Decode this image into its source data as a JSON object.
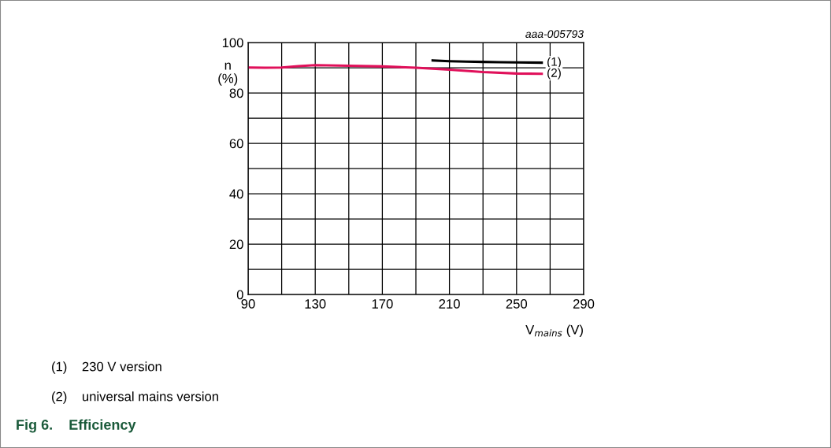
{
  "chart_data": {
    "type": "line",
    "title": "Fig 6.    Efficiency",
    "xlabel": "V$_{mains}$ (V)",
    "ylabel": "n\n(%)",
    "xlim": [
      90,
      290
    ],
    "ylim": [
      0,
      100
    ],
    "xticks": [
      90,
      {
        "value": 110,
        "label": null
      },
      130,
      {
        "value": 150,
        "label": null
      },
      170,
      {
        "value": 190,
        "label": null
      },
      210,
      {
        "value": 230,
        "label": null
      },
      250,
      {
        "value": 270,
        "label": null
      },
      290
    ],
    "yticks": [
      0,
      {
        "value": 10,
        "label": null
      },
      20,
      {
        "value": 30,
        "label": null
      },
      40,
      {
        "value": 50,
        "label": null
      },
      60,
      {
        "value": 70,
        "label": null
      },
      80,
      {
        "value": 90,
        "label": null
      },
      100
    ],
    "grid": true,
    "legend": false,
    "marker": "none",
    "line_style": "solid",
    "series": [
      {
        "name": "(1)",
        "color": "#000000",
        "x": [
          200,
          210,
          220,
          230,
          240,
          250,
          265
        ],
        "values": [
          92.9,
          92.6,
          92.4,
          92.3,
          92.2,
          92.1,
          92.0
        ]
      },
      {
        "name": "(2)",
        "color": "#e0105a",
        "x": [
          90,
          100,
          110,
          120,
          130,
          150,
          170,
          190,
          210,
          230,
          250,
          265
        ],
        "values": [
          90.1,
          90.0,
          90.1,
          90.6,
          91.0,
          90.8,
          90.5,
          90.0,
          89.2,
          88.3,
          87.7,
          87.6
        ]
      }
    ],
    "annotations": [
      "aaa-005793",
      "(1)    230 V version",
      "(2)    universal mains version"
    ]
  }
}
